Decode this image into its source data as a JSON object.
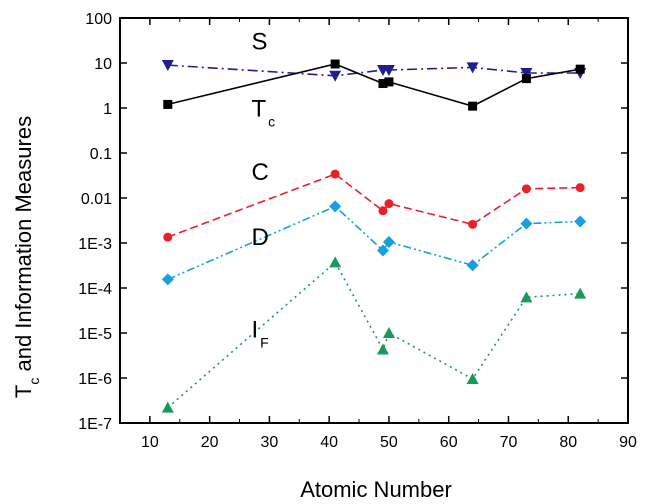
{
  "chart_data": {
    "type": "line",
    "title": "",
    "xlabel": "Atomic Number",
    "ylabel": {
      "main": "T",
      "sub": "c",
      "rest": " and Information Measures"
    },
    "xlim": [
      5,
      90
    ],
    "ylim": [
      1e-07,
      100
    ],
    "yscale": "log",
    "xticks": [
      10,
      20,
      30,
      40,
      50,
      60,
      70,
      80,
      90
    ],
    "yticks": [
      {
        "value": 1e-07,
        "label": "1E-7"
      },
      {
        "value": 1e-06,
        "label": "1E-6"
      },
      {
        "value": 1e-05,
        "label": "1E-5"
      },
      {
        "value": 0.0001,
        "label": "1E-4"
      },
      {
        "value": 0.001,
        "label": "1E-3"
      },
      {
        "value": 0.01,
        "label": "0.01"
      },
      {
        "value": 0.1,
        "label": "0.1"
      },
      {
        "value": 1,
        "label": "1"
      },
      {
        "value": 10,
        "label": "10"
      },
      {
        "value": 100,
        "label": "100"
      }
    ],
    "grid": false,
    "legend": "none",
    "series": [
      {
        "name": "S",
        "sub": "",
        "color": "#1f1f8f",
        "dash": "10,4,2,4",
        "marker": "triangle-down",
        "label_at": {
          "x": 27,
          "y": 20
        },
        "points": [
          [
            13,
            9
          ],
          [
            41,
            5.2
          ],
          [
            49,
            7
          ],
          [
            50,
            7
          ],
          [
            64,
            8
          ],
          [
            73,
            6
          ],
          [
            82,
            6
          ]
        ]
      },
      {
        "name": "T",
        "sub": "c",
        "color": "#000000",
        "dash": "",
        "marker": "square",
        "label_at": {
          "x": 27,
          "y": 0.65
        },
        "points": [
          [
            13,
            1.2
          ],
          [
            41,
            9.5
          ],
          [
            49,
            3.5
          ],
          [
            50,
            3.8
          ],
          [
            64,
            1.1
          ],
          [
            73,
            4.5
          ],
          [
            82,
            7.3
          ]
        ]
      },
      {
        "name": "C",
        "sub": "",
        "color": "#e8202a",
        "dash": "8,4",
        "marker": "circle",
        "label_at": {
          "x": 27,
          "y": 0.025
        },
        "points": [
          [
            13,
            0.00135
          ],
          [
            41,
            0.034
          ],
          [
            49,
            0.0052
          ],
          [
            50,
            0.0075
          ],
          [
            64,
            0.0026
          ],
          [
            73,
            0.016
          ],
          [
            82,
            0.017
          ]
        ]
      },
      {
        "name": "D",
        "sub": "",
        "color": "#17a0e0",
        "dash": "8,3,2,3,2,3",
        "marker": "diamond",
        "label_at": {
          "x": 27,
          "y": 0.0009
        },
        "points": [
          [
            13,
            0.000155
          ],
          [
            41,
            0.0065
          ],
          [
            49,
            0.00068
          ],
          [
            50,
            0.00105
          ],
          [
            64,
            0.00032
          ],
          [
            73,
            0.0027
          ],
          [
            82,
            0.003
          ]
        ]
      },
      {
        "name": "I",
        "sub": "F",
        "color": "#1a9a5a",
        "dash": "2,4",
        "marker": "triangle-up",
        "label_at": {
          "x": 27,
          "y": 8e-06
        },
        "points": [
          [
            13,
            2.2e-07
          ],
          [
            41,
            0.00037
          ],
          [
            49,
            4.3e-06
          ],
          [
            50,
            1e-05
          ],
          [
            64,
            9.5e-07
          ],
          [
            73,
            6.2e-05
          ],
          [
            82,
            7.5e-05
          ]
        ]
      }
    ]
  }
}
